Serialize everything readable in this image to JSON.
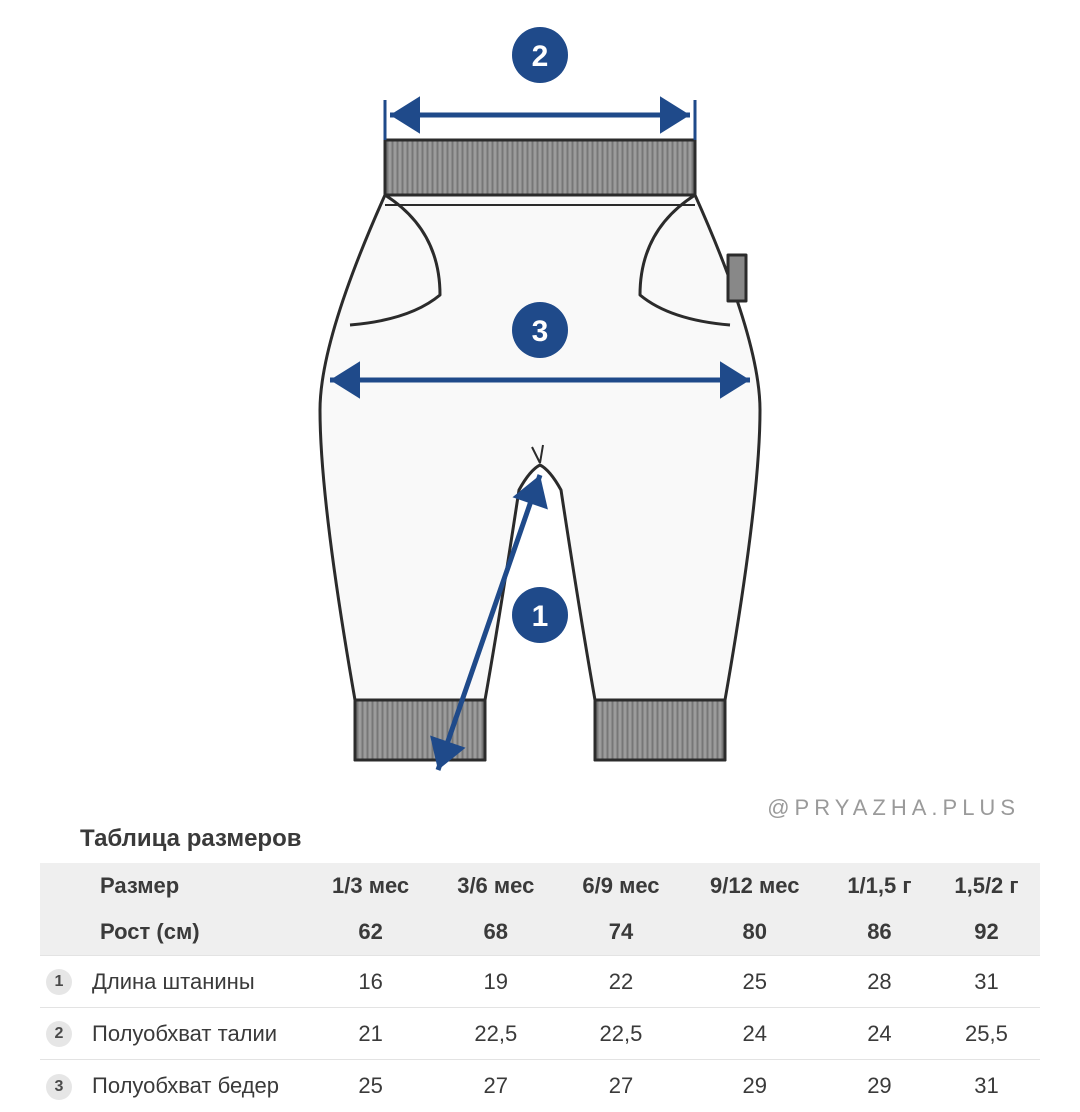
{
  "watermark": "@PRYAZHA.PLUS",
  "diagram": {
    "accent_color": "#1f4a8a",
    "outline_color": "#2b2b2b",
    "cuff_fill": "#a8a8a8",
    "waistband_fill": "#8f8f8f",
    "body_fill": "#f8f8f8",
    "markers": {
      "1": "1",
      "2": "2",
      "3": "3"
    }
  },
  "table": {
    "title": "Таблица размеров",
    "header_labels": [
      "Размер",
      "Рост (см)"
    ],
    "columns": [
      "1/3 мес",
      "3/6 мес",
      "6/9 мес",
      "9/12 мес",
      "1/1,5 г",
      "1,5/2 г"
    ],
    "height_row": [
      "62",
      "68",
      "74",
      "80",
      "86",
      "92"
    ],
    "rows": [
      {
        "num": "1",
        "label": "Длина штанины",
        "vals": [
          "16",
          "19",
          "22",
          "25",
          "28",
          "31"
        ]
      },
      {
        "num": "2",
        "label": "Полуобхват талии",
        "vals": [
          "21",
          "22,5",
          "22,5",
          "24",
          "24",
          "25,5"
        ]
      },
      {
        "num": "3",
        "label": "Полуобхват бедер",
        "vals": [
          "25",
          "27",
          "27",
          "29",
          "29",
          "31"
        ]
      }
    ],
    "header_bg": "#efefef",
    "border_color": "#e3e3e3",
    "text_color": "#3a3a3a",
    "font_size": 22
  }
}
